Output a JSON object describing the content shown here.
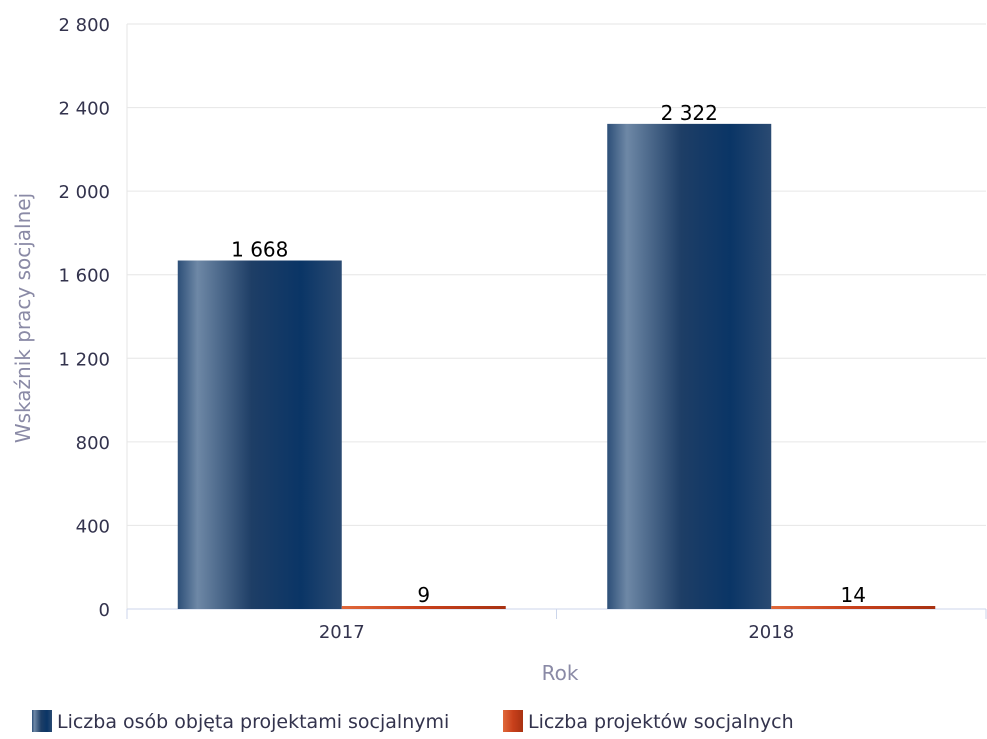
{
  "chart_data": {
    "type": "bar",
    "title": "",
    "xlabel": "Rok",
    "ylabel": "Wskaźnik pracy socjalnej",
    "categories": [
      "2017",
      "2018"
    ],
    "ylim": [
      0,
      2800
    ],
    "yticks": [
      0,
      400,
      800,
      1200,
      1600,
      2000,
      2400,
      2800
    ],
    "ytick_labels": [
      "0",
      "400",
      "800",
      "1 200",
      "1 600",
      "2 000",
      "2 400",
      "2 800"
    ],
    "grid": true,
    "legend_position": "bottom-left",
    "series": [
      {
        "name": "Liczba osób objęta projektami socjalnymi",
        "values": [
          1668,
          2322
        ],
        "data_labels": [
          "1 668",
          "2 322"
        ],
        "color": "#0a3566"
      },
      {
        "name": "Liczba projektów socjalnych",
        "values": [
          9,
          14
        ],
        "data_labels": [
          "9",
          "14"
        ],
        "color": "#c8401b"
      }
    ],
    "colors": {
      "axis_label": "#8a8aa6",
      "tick_label": "#33334d",
      "grid": "#e6e6e6",
      "axis_line": "#ccd6eb"
    }
  }
}
